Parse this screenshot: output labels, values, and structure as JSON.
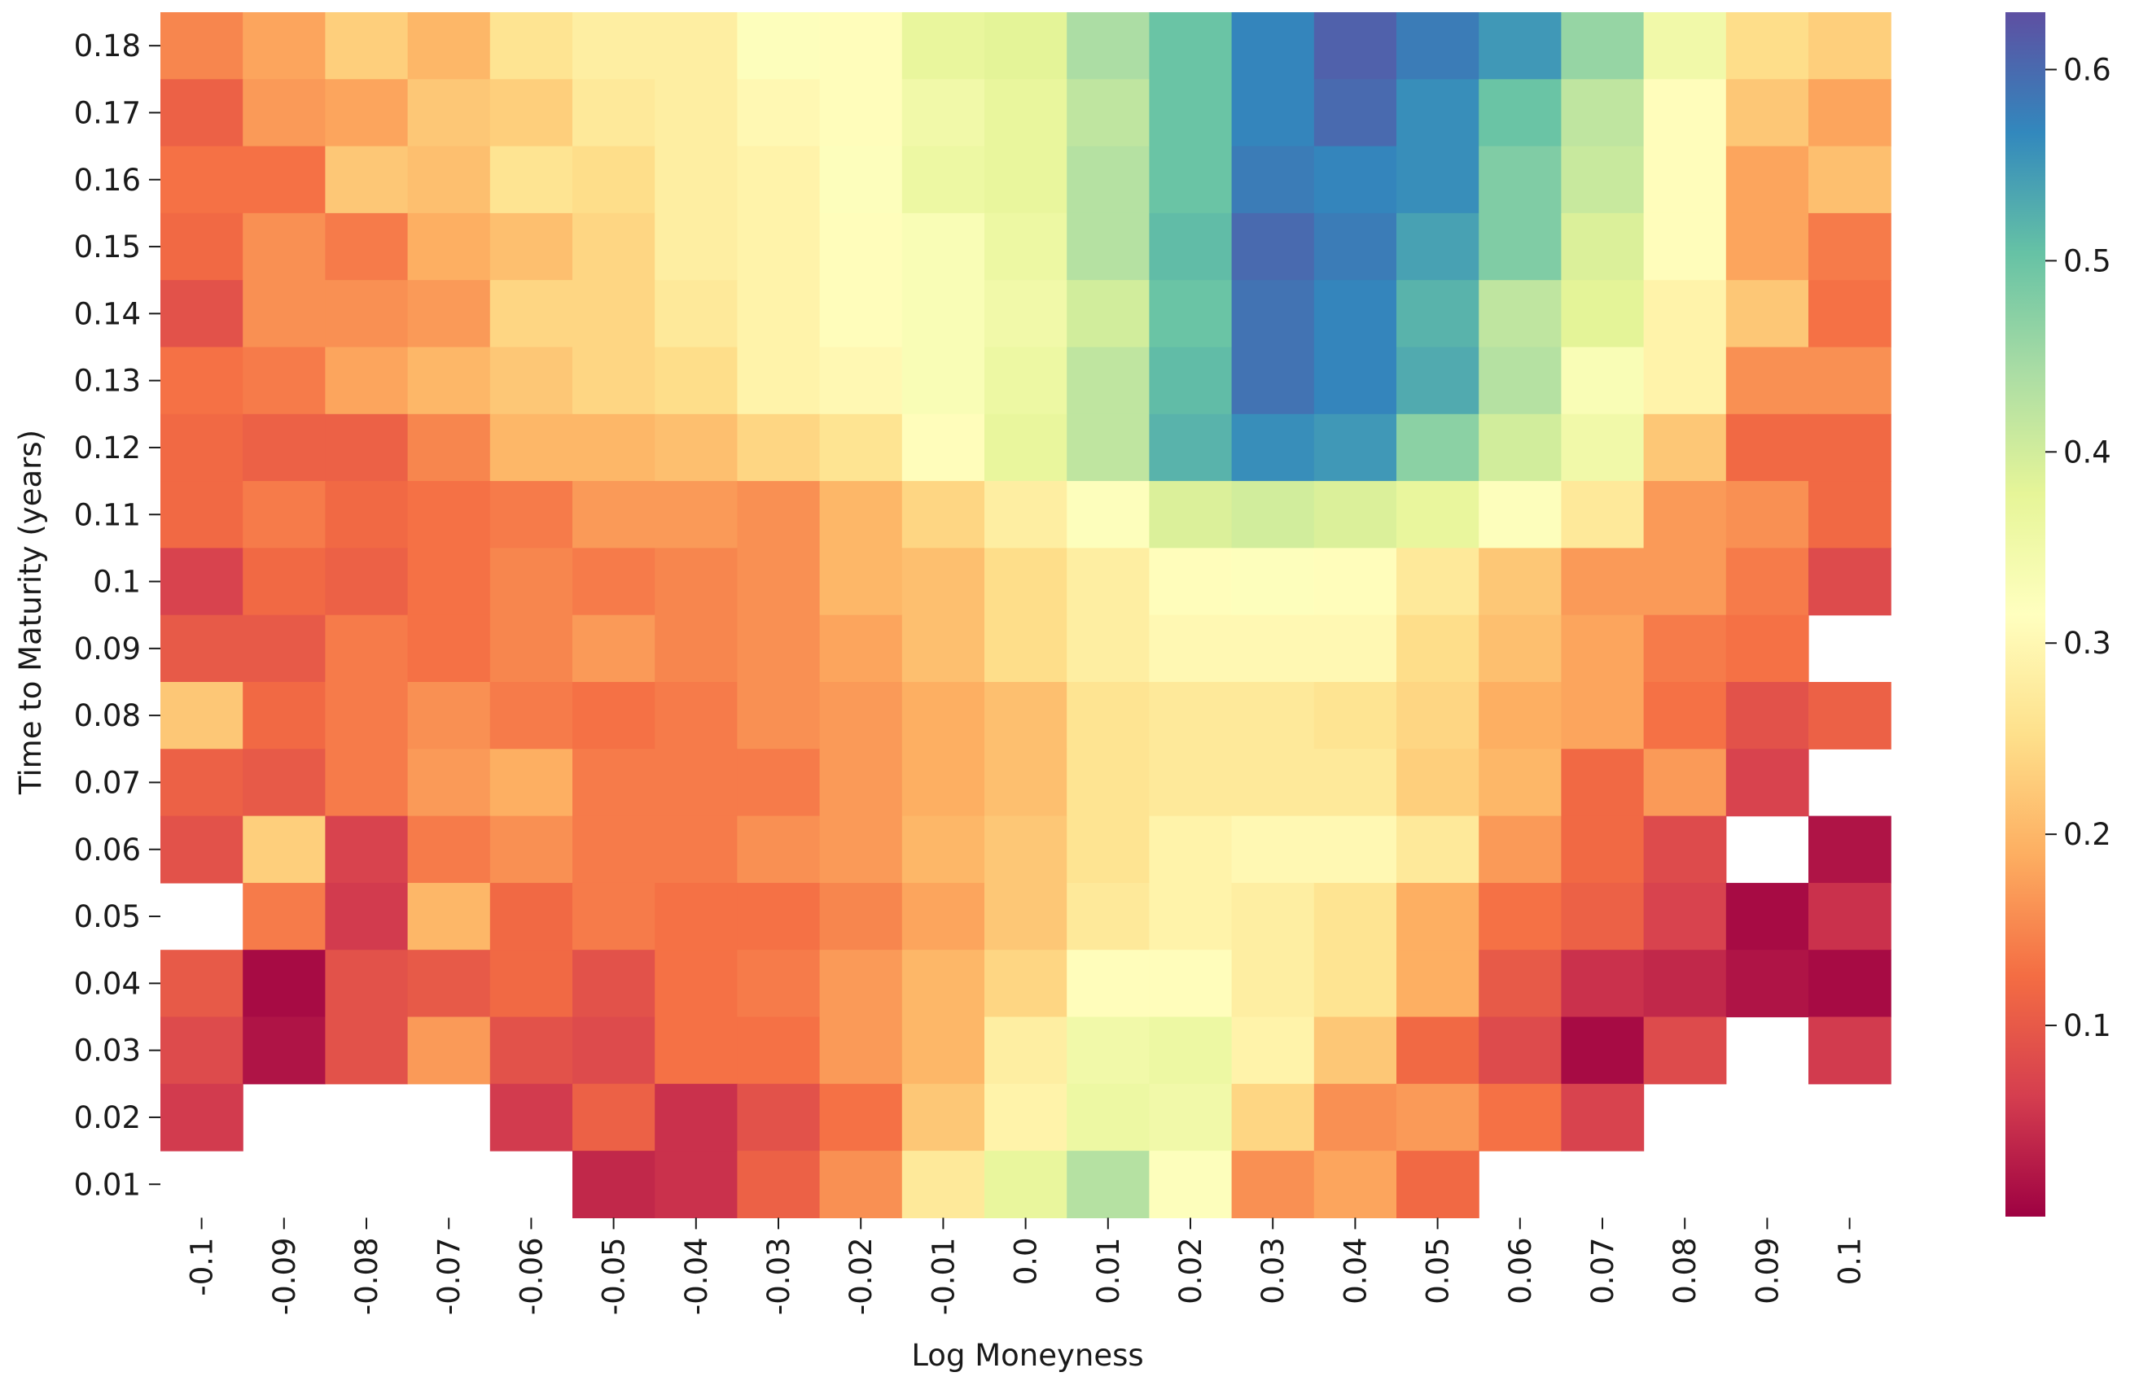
{
  "chart_data": {
    "type": "heatmap",
    "xlabel": "Log Moneyness",
    "ylabel": "Time to Maturity (years)",
    "x_categories": [
      "-0.1",
      "-0.09",
      "-0.08",
      "-0.07",
      "-0.06",
      "-0.05",
      "-0.04",
      "-0.03",
      "-0.02",
      "-0.01",
      "0.0",
      "0.01",
      "0.02",
      "0.03",
      "0.04",
      "0.05",
      "0.06",
      "0.07",
      "0.08",
      "0.09",
      "0.1"
    ],
    "y_categories": [
      "0.18",
      "0.17",
      "0.16",
      "0.15",
      "0.14",
      "0.13",
      "0.12",
      "0.11",
      "0.1",
      "0.09",
      "0.08",
      "0.07",
      "0.06",
      "0.05",
      "0.04",
      "0.03",
      "0.02",
      "0.01"
    ],
    "values": [
      [
        0.15,
        0.18,
        0.23,
        0.2,
        0.26,
        0.28,
        0.28,
        0.32,
        0.31,
        0.37,
        0.38,
        0.44,
        0.5,
        0.57,
        0.61,
        0.58,
        0.55,
        0.46,
        0.35,
        0.25,
        0.23
      ],
      [
        0.11,
        0.17,
        0.18,
        0.22,
        0.23,
        0.27,
        0.28,
        0.3,
        0.31,
        0.35,
        0.37,
        0.42,
        0.5,
        0.57,
        0.6,
        0.56,
        0.5,
        0.42,
        0.31,
        0.22,
        0.18
      ],
      [
        0.13,
        0.13,
        0.22,
        0.21,
        0.26,
        0.25,
        0.28,
        0.29,
        0.32,
        0.36,
        0.37,
        0.43,
        0.5,
        0.58,
        0.57,
        0.56,
        0.48,
        0.41,
        0.31,
        0.18,
        0.21
      ],
      [
        0.12,
        0.16,
        0.14,
        0.19,
        0.21,
        0.24,
        0.28,
        0.29,
        0.31,
        0.33,
        0.36,
        0.43,
        0.51,
        0.6,
        0.58,
        0.54,
        0.48,
        0.39,
        0.31,
        0.18,
        0.14
      ],
      [
        0.09,
        0.16,
        0.16,
        0.17,
        0.24,
        0.24,
        0.27,
        0.29,
        0.31,
        0.33,
        0.35,
        0.4,
        0.5,
        0.59,
        0.57,
        0.52,
        0.42,
        0.38,
        0.29,
        0.22,
        0.13
      ],
      [
        0.13,
        0.14,
        0.18,
        0.2,
        0.22,
        0.24,
        0.25,
        0.29,
        0.3,
        0.33,
        0.36,
        0.42,
        0.51,
        0.59,
        0.57,
        0.53,
        0.43,
        0.33,
        0.29,
        0.16,
        0.16
      ],
      [
        0.12,
        0.11,
        0.11,
        0.15,
        0.2,
        0.2,
        0.21,
        0.24,
        0.26,
        0.31,
        0.37,
        0.42,
        0.52,
        0.56,
        0.55,
        0.47,
        0.4,
        0.35,
        0.22,
        0.12,
        0.12
      ],
      [
        0.12,
        0.14,
        0.12,
        0.13,
        0.14,
        0.17,
        0.17,
        0.16,
        0.2,
        0.24,
        0.28,
        0.32,
        0.39,
        0.4,
        0.39,
        0.37,
        0.32,
        0.27,
        0.17,
        0.16,
        0.12
      ],
      [
        0.07,
        0.12,
        0.11,
        0.13,
        0.15,
        0.14,
        0.15,
        0.16,
        0.2,
        0.21,
        0.25,
        0.28,
        0.31,
        0.32,
        0.31,
        0.27,
        0.22,
        0.17,
        0.17,
        0.14,
        0.08
      ],
      [
        0.1,
        0.1,
        0.14,
        0.13,
        0.15,
        0.17,
        0.15,
        0.16,
        0.18,
        0.21,
        0.25,
        0.28,
        0.3,
        0.3,
        0.3,
        0.25,
        0.21,
        0.18,
        0.14,
        0.13,
        null
      ],
      [
        0.22,
        0.12,
        0.14,
        0.16,
        0.14,
        0.13,
        0.14,
        0.16,
        0.17,
        0.19,
        0.21,
        0.26,
        0.27,
        0.27,
        0.26,
        0.24,
        0.19,
        0.18,
        0.13,
        0.09,
        0.11
      ],
      [
        0.11,
        0.1,
        0.14,
        0.17,
        0.19,
        0.14,
        0.14,
        0.14,
        0.17,
        0.19,
        0.21,
        0.26,
        0.27,
        0.27,
        0.27,
        0.23,
        0.2,
        0.12,
        0.17,
        0.07,
        null
      ],
      [
        0.09,
        0.23,
        0.07,
        0.14,
        0.16,
        0.14,
        0.14,
        0.16,
        0.17,
        0.2,
        0.22,
        0.26,
        0.29,
        0.3,
        0.3,
        0.27,
        0.17,
        0.12,
        0.08,
        null,
        0.02
      ],
      [
        null,
        0.14,
        0.06,
        0.2,
        0.12,
        0.14,
        0.13,
        0.13,
        0.15,
        0.18,
        0.22,
        0.27,
        0.29,
        0.28,
        0.26,
        0.19,
        0.13,
        0.11,
        0.07,
        0.01,
        0.05
      ],
      [
        0.1,
        0.01,
        0.09,
        0.1,
        0.12,
        0.09,
        0.13,
        0.14,
        0.17,
        0.2,
        0.24,
        0.31,
        0.31,
        0.28,
        0.26,
        0.19,
        0.1,
        0.05,
        0.04,
        0.02,
        0.01
      ],
      [
        0.08,
        0.02,
        0.09,
        0.17,
        0.09,
        0.08,
        0.13,
        0.13,
        0.17,
        0.2,
        0.28,
        0.35,
        0.36,
        0.29,
        0.22,
        0.12,
        0.08,
        0.01,
        0.08,
        null,
        0.06
      ],
      [
        0.06,
        null,
        null,
        null,
        0.06,
        0.11,
        0.05,
        0.09,
        0.13,
        0.22,
        0.29,
        0.36,
        0.35,
        0.24,
        0.16,
        0.17,
        0.13,
        0.07,
        null,
        null,
        null
      ],
      [
        null,
        null,
        null,
        null,
        null,
        0.04,
        0.05,
        0.11,
        0.16,
        0.27,
        0.37,
        0.43,
        0.32,
        0.16,
        0.18,
        0.12,
        null,
        null,
        null,
        null,
        null
      ]
    ],
    "vmin": 0.0,
    "vmax": 0.63,
    "colormap": "Spectral",
    "colorbar_ticks": [
      "0.1",
      "0.2",
      "0.3",
      "0.4",
      "0.5",
      "0.6"
    ],
    "colorbar_tick_values": [
      0.1,
      0.2,
      0.3,
      0.4,
      0.5,
      0.6
    ],
    "colors": [
      "#9e0142",
      "#d53e4f",
      "#f46d43",
      "#fdae61",
      "#fee08b",
      "#ffffbf",
      "#e6f598",
      "#abdda4",
      "#66c2a5",
      "#3288bd",
      "#5e4fa2"
    ]
  }
}
